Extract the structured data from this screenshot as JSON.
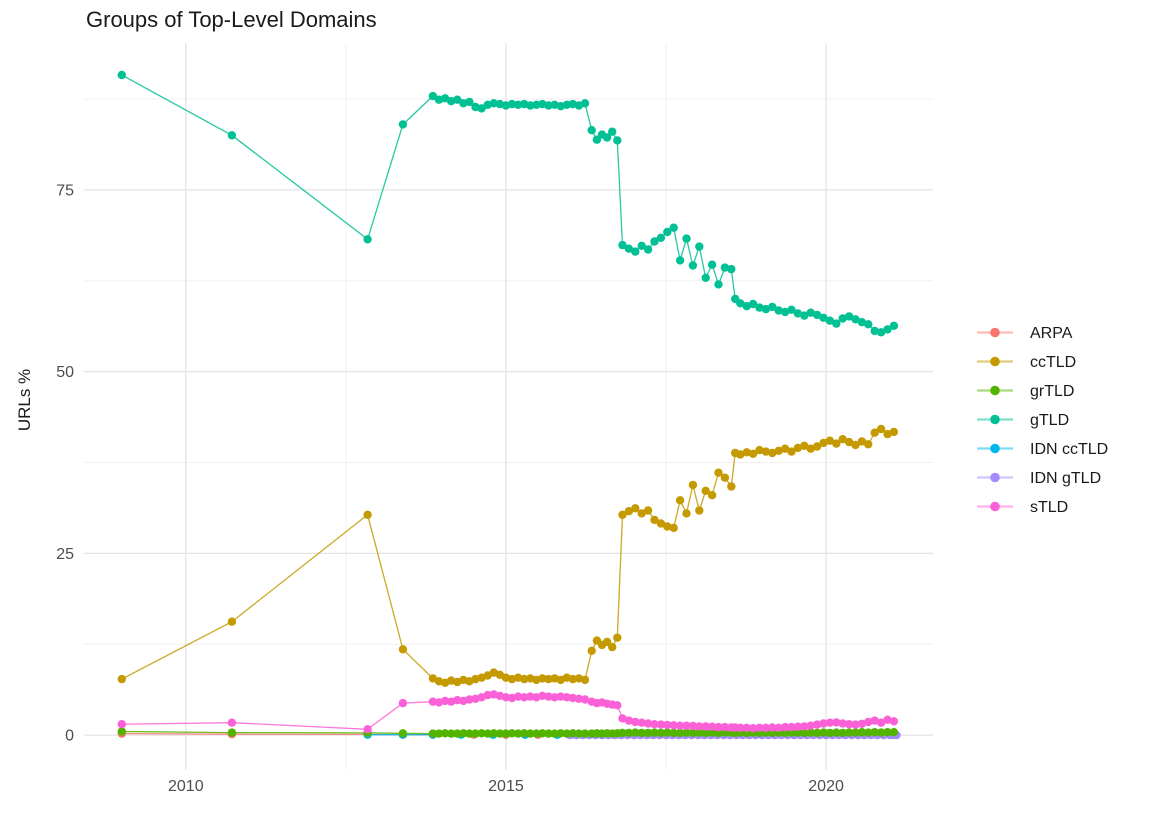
{
  "page": {
    "background": "#ffffff"
  },
  "chart_data": {
    "type": "line",
    "markers": true,
    "title": "Groups of Top-Level Domains",
    "xlabel": "",
    "ylabel": "URLs %",
    "x_ticks": [
      2010,
      2015,
      2020
    ],
    "x_minor_gridlines": [
      2012.5,
      2017.5
    ],
    "y_ticks": [
      0,
      25,
      50,
      75
    ],
    "y_minor_gridlines": [
      12.5,
      37.5,
      62.5,
      87.5
    ],
    "xlim": [
      2008.41,
      2021.67
    ],
    "ylim": [
      -4.8,
      95.2
    ],
    "grid": true,
    "legend_position": "right",
    "colors": {
      "axis_text": "#4d4d4d",
      "title_text": "#1a1a1a",
      "grid_major": "#e4e4e4",
      "grid_minor": "#f0f0f0",
      "background": "#ffffff"
    },
    "draw_order": [
      "ARPA",
      "ccTLD",
      "IDN ccTLD",
      "gTLD",
      "IDN gTLD",
      "grTLD",
      "sTLD"
    ],
    "series": [
      {
        "name": "ARPA",
        "color": "#F8766D",
        "x": [
          2009.0,
          2010.72,
          2012.84,
          2013.39,
          2013.86,
          2014.5,
          2015.0,
          2015.5,
          2016.0,
          2016.5,
          2017.0,
          2017.5,
          2018.0,
          2018.5,
          2019.0,
          2019.5,
          2020.0,
          2020.5,
          2021.06
        ],
        "y": [
          0.2,
          0.12,
          0.1,
          0.06,
          0.05,
          0.05,
          0.04,
          0.04,
          0.04,
          0.03,
          0.03,
          0.03,
          0.03,
          0.02,
          0.02,
          0.02,
          0.02,
          0.02,
          0.02
        ]
      },
      {
        "name": "ccTLD",
        "color": "#C49A00",
        "x": [
          2009.0,
          2010.72,
          2012.84,
          2013.39,
          2013.86,
          2013.955,
          2014.05,
          2014.145,
          2014.24,
          2014.335,
          2014.43,
          2014.525,
          2014.62,
          2014.715,
          2014.81,
          2014.905,
          2015.0,
          2015.095,
          2015.19,
          2015.285,
          2015.38,
          2015.475,
          2015.57,
          2015.665,
          2015.76,
          2015.855,
          2015.95,
          2016.045,
          2016.14,
          2016.235,
          2016.34,
          2016.42,
          2016.5,
          2016.58,
          2016.66,
          2016.74,
          2016.82,
          2016.92,
          2017.02,
          2017.12,
          2017.22,
          2017.32,
          2017.42,
          2017.52,
          2017.62,
          2017.72,
          2017.82,
          2017.92,
          2018.02,
          2018.12,
          2018.22,
          2018.32,
          2018.42,
          2018.52,
          2018.58,
          2018.66,
          2018.76,
          2018.86,
          2018.96,
          2019.06,
          2019.16,
          2019.26,
          2019.36,
          2019.46,
          2019.56,
          2019.66,
          2019.76,
          2019.86,
          2019.96,
          2020.06,
          2020.16,
          2020.26,
          2020.36,
          2020.46,
          2020.56,
          2020.66,
          2020.76,
          2020.86,
          2020.96,
          2021.06
        ],
        "y": [
          7.7,
          15.6,
          30.3,
          11.8,
          7.8,
          7.4,
          7.2,
          7.5,
          7.3,
          7.6,
          7.4,
          7.7,
          7.9,
          8.2,
          8.6,
          8.3,
          7.9,
          7.7,
          7.9,
          7.7,
          7.8,
          7.6,
          7.8,
          7.7,
          7.8,
          7.6,
          7.9,
          7.7,
          7.8,
          7.6,
          11.6,
          13.0,
          12.4,
          12.8,
          12.1,
          13.4,
          30.3,
          30.8,
          31.2,
          30.5,
          30.9,
          29.6,
          29.1,
          28.7,
          28.5,
          32.3,
          30.5,
          34.4,
          30.9,
          33.6,
          33.0,
          36.1,
          35.4,
          34.2,
          38.8,
          38.6,
          38.9,
          38.7,
          39.2,
          39.0,
          38.8,
          39.1,
          39.4,
          39.0,
          39.5,
          39.8,
          39.4,
          39.7,
          40.2,
          40.5,
          40.1,
          40.7,
          40.3,
          39.9,
          40.4,
          40.0,
          41.6,
          42.1,
          41.4,
          41.7
        ]
      },
      {
        "name": "grTLD",
        "color": "#53B400",
        "x": [
          2009.0,
          2010.72,
          2012.84,
          2013.39,
          2013.86,
          2013.955,
          2014.05,
          2014.145,
          2014.24,
          2014.335,
          2014.43,
          2014.525,
          2014.62,
          2014.715,
          2014.81,
          2014.905,
          2015.0,
          2015.095,
          2015.19,
          2015.285,
          2015.38,
          2015.475,
          2015.57,
          2015.665,
          2015.76,
          2015.855,
          2015.95,
          2016.045,
          2016.14,
          2016.235,
          2016.34,
          2016.42,
          2016.5,
          2016.58,
          2016.66,
          2016.74,
          2016.82,
          2016.92,
          2017.02,
          2017.12,
          2017.22,
          2017.32,
          2017.42,
          2017.52,
          2017.62,
          2017.72,
          2017.82,
          2017.92,
          2018.02,
          2018.12,
          2018.22,
          2018.32,
          2018.42,
          2018.52,
          2018.58,
          2018.66,
          2018.76,
          2018.86,
          2018.96,
          2019.06,
          2019.16,
          2019.26,
          2019.36,
          2019.46,
          2019.56,
          2019.66,
          2019.76,
          2019.86,
          2019.96,
          2020.06,
          2020.16,
          2020.26,
          2020.36,
          2020.46,
          2020.56,
          2020.66,
          2020.76,
          2020.86,
          2020.96,
          2021.06
        ],
        "y": [
          0.5,
          0.35,
          0.3,
          0.25,
          0.2,
          0.2,
          0.25,
          0.2,
          0.2,
          0.25,
          0.2,
          0.2,
          0.25,
          0.2,
          0.25,
          0.2,
          0.2,
          0.25,
          0.2,
          0.25,
          0.2,
          0.2,
          0.25,
          0.2,
          0.2,
          0.25,
          0.2,
          0.25,
          0.2,
          0.2,
          0.2,
          0.25,
          0.2,
          0.25,
          0.2,
          0.25,
          0.3,
          0.3,
          0.35,
          0.3,
          0.3,
          0.35,
          0.3,
          0.35,
          0.3,
          0.3,
          0.35,
          0.3,
          0.35,
          0.3,
          0.35,
          0.3,
          0.35,
          0.35,
          0.3,
          0.35,
          0.3,
          0.35,
          0.3,
          0.35,
          0.3,
          0.35,
          0.3,
          0.35,
          0.35,
          0.3,
          0.35,
          0.3,
          0.35,
          0.3,
          0.35,
          0.3,
          0.35,
          0.35,
          0.4,
          0.35,
          0.4,
          0.35,
          0.4,
          0.4
        ]
      },
      {
        "name": "gTLD",
        "color": "#00C094",
        "x": [
          2009.0,
          2010.72,
          2012.84,
          2013.39,
          2013.86,
          2013.955,
          2014.05,
          2014.145,
          2014.24,
          2014.335,
          2014.43,
          2014.525,
          2014.62,
          2014.715,
          2014.81,
          2014.905,
          2015.0,
          2015.095,
          2015.19,
          2015.285,
          2015.38,
          2015.475,
          2015.57,
          2015.665,
          2015.76,
          2015.855,
          2015.95,
          2016.045,
          2016.14,
          2016.235,
          2016.34,
          2016.42,
          2016.5,
          2016.58,
          2016.66,
          2016.74,
          2016.82,
          2016.92,
          2017.02,
          2017.12,
          2017.22,
          2017.32,
          2017.42,
          2017.52,
          2017.62,
          2017.72,
          2017.82,
          2017.92,
          2018.02,
          2018.12,
          2018.22,
          2018.32,
          2018.42,
          2018.52,
          2018.58,
          2018.66,
          2018.76,
          2018.86,
          2018.96,
          2019.06,
          2019.16,
          2019.26,
          2019.36,
          2019.46,
          2019.56,
          2019.66,
          2019.76,
          2019.86,
          2019.96,
          2020.06,
          2020.16,
          2020.26,
          2020.36,
          2020.46,
          2020.56,
          2020.66,
          2020.76,
          2020.86,
          2020.96,
          2021.06
        ],
        "y": [
          90.8,
          82.5,
          68.2,
          84.0,
          87.9,
          87.4,
          87.6,
          87.2,
          87.4,
          86.9,
          87.1,
          86.4,
          86.2,
          86.7,
          86.9,
          86.8,
          86.6,
          86.8,
          86.7,
          86.8,
          86.6,
          86.7,
          86.8,
          86.6,
          86.7,
          86.5,
          86.7,
          86.8,
          86.6,
          86.9,
          83.2,
          81.9,
          82.6,
          82.2,
          83.0,
          81.8,
          67.4,
          66.9,
          66.5,
          67.3,
          66.8,
          67.9,
          68.4,
          69.2,
          69.8,
          65.3,
          68.3,
          64.6,
          67.2,
          62.9,
          64.7,
          62.0,
          64.3,
          64.1,
          60.0,
          59.4,
          59.0,
          59.3,
          58.8,
          58.6,
          58.9,
          58.4,
          58.2,
          58.5,
          58.0,
          57.7,
          58.1,
          57.8,
          57.4,
          57.0,
          56.6,
          57.3,
          57.6,
          57.2,
          56.8,
          56.5,
          55.6,
          55.4,
          55.8,
          56.3
        ]
      },
      {
        "name": "IDN ccTLD",
        "color": "#00B6EB",
        "x": [
          2012.84,
          2013.39,
          2013.86,
          2014.3,
          2014.8,
          2015.3,
          2015.8,
          2016.3,
          2016.8,
          2017.3,
          2017.8,
          2018.3,
          2018.8,
          2019.3,
          2019.8,
          2020.3,
          2020.8,
          2021.06
        ],
        "y": [
          0.05,
          0.05,
          0.05,
          0.05,
          0.04,
          0.04,
          0.04,
          0.04,
          0.05,
          0.05,
          0.05,
          0.05,
          0.05,
          0.05,
          0.05,
          0.05,
          0.05,
          0.05
        ]
      },
      {
        "name": "IDN gTLD",
        "color": "#A58AFF",
        "x": [
          2016.0,
          2016.1,
          2016.2,
          2016.3,
          2016.4,
          2016.5,
          2016.6,
          2016.7,
          2016.8,
          2016.9,
          2017.0,
          2017.1,
          2017.2,
          2017.3,
          2017.4,
          2017.5,
          2017.6,
          2017.7,
          2017.8,
          2017.9,
          2018.0,
          2018.1,
          2018.2,
          2018.3,
          2018.4,
          2018.5,
          2018.6,
          2018.7,
          2018.8,
          2018.9,
          2019.0,
          2019.1,
          2019.2,
          2019.3,
          2019.4,
          2019.5,
          2019.6,
          2019.7,
          2019.8,
          2019.9,
          2020.0,
          2020.1,
          2020.2,
          2020.3,
          2020.4,
          2020.5,
          2020.6,
          2020.7,
          2020.8,
          2020.9,
          2021.0,
          2021.1
        ],
        "y": [
          0,
          0,
          0,
          0,
          0,
          0,
          0,
          0,
          0,
          0,
          0,
          0,
          0,
          0,
          0,
          0,
          0,
          0,
          0,
          0,
          0,
          0,
          0,
          0,
          0,
          0,
          0,
          0,
          0,
          0,
          0,
          0,
          0,
          0,
          0,
          0,
          0,
          0,
          0,
          0,
          0,
          0,
          0,
          0,
          0,
          0,
          0,
          0,
          0,
          0,
          0,
          0
        ]
      },
      {
        "name": "sTLD",
        "color": "#FB61D7",
        "x": [
          2009.0,
          2010.72,
          2012.84,
          2013.39,
          2013.86,
          2013.955,
          2014.05,
          2014.145,
          2014.24,
          2014.335,
          2014.43,
          2014.525,
          2014.62,
          2014.715,
          2014.81,
          2014.905,
          2015.0,
          2015.095,
          2015.19,
          2015.285,
          2015.38,
          2015.475,
          2015.57,
          2015.665,
          2015.76,
          2015.855,
          2015.95,
          2016.045,
          2016.14,
          2016.235,
          2016.34,
          2016.42,
          2016.5,
          2016.58,
          2016.66,
          2016.74,
          2016.82,
          2016.92,
          2017.02,
          2017.12,
          2017.22,
          2017.32,
          2017.42,
          2017.52,
          2017.62,
          2017.72,
          2017.82,
          2017.92,
          2018.02,
          2018.12,
          2018.22,
          2018.32,
          2018.42,
          2018.52,
          2018.58,
          2018.66,
          2018.76,
          2018.86,
          2018.96,
          2019.06,
          2019.16,
          2019.26,
          2019.36,
          2019.46,
          2019.56,
          2019.66,
          2019.76,
          2019.86,
          2019.96,
          2020.06,
          2020.16,
          2020.26,
          2020.36,
          2020.46,
          2020.56,
          2020.66,
          2020.76,
          2020.86,
          2020.96,
          2021.06
        ],
        "y": [
          1.5,
          1.7,
          0.8,
          4.4,
          4.6,
          4.5,
          4.7,
          4.6,
          4.8,
          4.7,
          4.9,
          5.0,
          5.2,
          5.5,
          5.6,
          5.4,
          5.2,
          5.1,
          5.3,
          5.2,
          5.3,
          5.2,
          5.4,
          5.3,
          5.2,
          5.3,
          5.2,
          5.1,
          5.0,
          4.9,
          4.6,
          4.4,
          4.5,
          4.3,
          4.2,
          4.1,
          2.3,
          2.0,
          1.8,
          1.7,
          1.6,
          1.5,
          1.45,
          1.4,
          1.35,
          1.3,
          1.3,
          1.25,
          1.2,
          1.2,
          1.15,
          1.1,
          1.1,
          1.05,
          1.05,
          1.0,
          1.0,
          0.95,
          1.0,
          1.0,
          1.05,
          1.0,
          1.1,
          1.1,
          1.15,
          1.2,
          1.3,
          1.45,
          1.6,
          1.7,
          1.75,
          1.6,
          1.5,
          1.45,
          1.55,
          1.8,
          2.0,
          1.7,
          2.1,
          1.9
        ]
      }
    ]
  }
}
